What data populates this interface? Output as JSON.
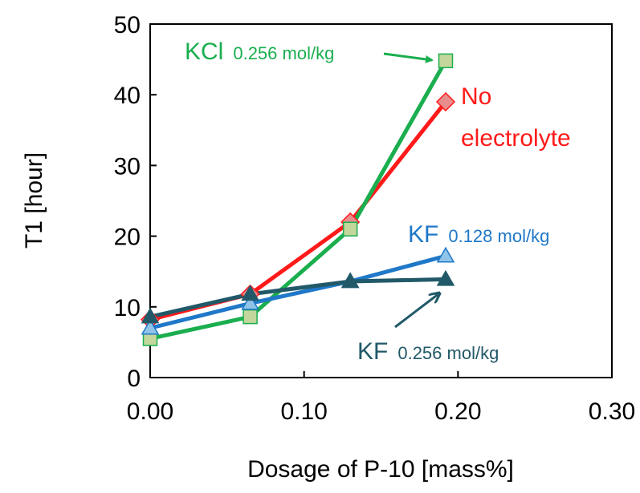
{
  "chart_data": {
    "type": "line",
    "xlabel": "Dosage of P-10 [mass%]",
    "ylabel": "T1 [hour]",
    "xlim": [
      0,
      0.3
    ],
    "ylim": [
      0,
      50
    ],
    "x_ticks": [
      "0.00",
      "0.10",
      "0.20",
      "0.30"
    ],
    "y_ticks": [
      "0",
      "10",
      "20",
      "30",
      "40",
      "50"
    ],
    "grid": false,
    "legend": "none",
    "series": [
      {
        "name": "No electrolyte",
        "color": "#ff1a1a",
        "marker": "diamond",
        "marker_fill": "#e88c8c",
        "points": [
          [
            0.0,
            8.2
          ],
          [
            0.065,
            11.8
          ],
          [
            0.13,
            22.0
          ],
          [
            0.192,
            39.0
          ]
        ]
      },
      {
        "name": "KCl 0.256 mol/kg",
        "color": "#1aae4f",
        "marker": "square",
        "marker_fill": "#c3d69b",
        "points": [
          [
            0.0,
            5.5
          ],
          [
            0.065,
            8.6
          ],
          [
            0.13,
            21.0
          ],
          [
            0.192,
            44.8
          ]
        ]
      },
      {
        "name": "KF 0.128 mol/kg",
        "color": "#1f78c8",
        "marker": "triangle",
        "marker_fill": "#8fc4e8",
        "points": [
          [
            0.0,
            7.0
          ],
          [
            0.065,
            10.5
          ],
          [
            0.13,
            13.6
          ],
          [
            0.192,
            17.2
          ]
        ]
      },
      {
        "name": "KF 0.256 mol/kg",
        "color": "#215968",
        "marker": "triangle",
        "marker_fill": "#215968",
        "points": [
          [
            0.0,
            8.6
          ],
          [
            0.065,
            11.8
          ],
          [
            0.13,
            13.6
          ],
          [
            0.192,
            13.9
          ]
        ]
      }
    ],
    "annotations": {
      "kcl": {
        "main": "KCl",
        "sub": "0.256 mol/kg",
        "color": "#1aae4f"
      },
      "no_electrolyte": {
        "line1": "No",
        "line2": "electrolyte",
        "color": "#ff1a1a"
      },
      "kf128": {
        "main": "KF",
        "sub": "0.128 mol/kg",
        "color": "#1f78c8"
      },
      "kf256": {
        "main": "KF",
        "sub": "0.256 mol/kg",
        "color": "#215968"
      }
    }
  }
}
